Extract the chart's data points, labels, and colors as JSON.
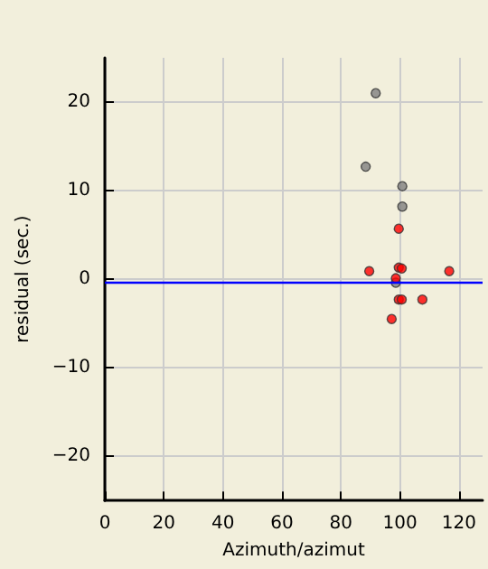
{
  "chart_data": {
    "type": "scatter",
    "xlabel": "Azimuth/azimut",
    "ylabel": "residual (sec.)",
    "xlim": [
      0,
      128
    ],
    "ylim": [
      -25,
      25
    ],
    "xticks": [
      0,
      20,
      40,
      60,
      80,
      100,
      120
    ],
    "yticks": [
      -20,
      -10,
      0,
      10,
      20
    ],
    "grid": true,
    "marker": "circle",
    "series": [
      {
        "color": "#808080",
        "x": [
          91.8,
          88.4,
          100.8,
          100.8,
          98.6
        ],
        "values": [
          21,
          12.7,
          10.5,
          8.2,
          -0.4
        ]
      },
      {
        "color": "#ff0000",
        "x": [
          99.6,
          89.6,
          99.6,
          100.6,
          116.7,
          98.6,
          99.6,
          100.6,
          107.6,
          97.2
        ],
        "values": [
          5.7,
          0.9,
          1.3,
          1.2,
          0.9,
          0.1,
          -2.3,
          -2.3,
          -2.3,
          -4.5
        ]
      }
    ],
    "ref_lines": [
      {
        "axis": "y",
        "value": -0.3,
        "color": "#0000ff"
      }
    ]
  }
}
